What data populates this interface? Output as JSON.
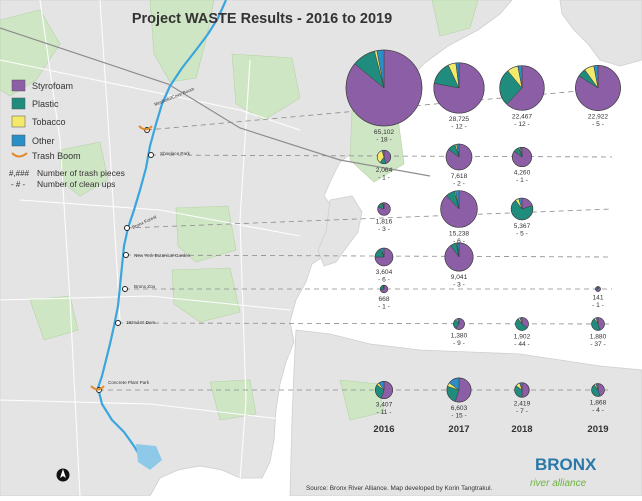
{
  "title": "Project WASTE Results - 2016 to 2019",
  "legend": [
    {
      "label": "Styrofoam",
      "color": "#8c5ea6"
    },
    {
      "label": "Plastic",
      "color": "#1f8c7d"
    },
    {
      "label": "Tobacco",
      "color": "#f3ea6c"
    },
    {
      "label": "Other",
      "color": "#2a8fc6"
    }
  ],
  "legend_extra": {
    "boom": "Trash Boom",
    "count_symbol": "#,###",
    "count_label": "Number of trash pieces",
    "cleanup_symbol": "- # -",
    "cleanup_label": "Number of clean ups"
  },
  "places": [
    "Mosholu/Cove Boom",
    "Shoelace Park",
    "Bronx Forest",
    "New York Botanical Garden",
    "Bronx Zoo",
    "182nd St Dam",
    "Concrete Plant Park"
  ],
  "years": [
    "2016",
    "2017",
    "2018",
    "2019"
  ],
  "sites": [
    {
      "cells": [
        {
          "count": "65,102",
          "cleanups": "- 18 -",
          "shares": [
            0.86,
            0.1,
            0.01,
            0.03
          ]
        },
        {
          "count": "28,725",
          "cleanups": "- 12 -",
          "shares": [
            0.78,
            0.15,
            0.05,
            0.02
          ]
        },
        {
          "count": "22,467",
          "cleanups": "- 12 -",
          "shares": [
            0.62,
            0.27,
            0.08,
            0.03
          ]
        },
        {
          "count": "22,922",
          "cleanups": "- 5 -",
          "shares": [
            0.84,
            0.06,
            0.07,
            0.03
          ]
        }
      ]
    },
    {
      "cells": [
        {
          "count": "2,064",
          "cleanups": "- 1 -",
          "shares": [
            0.45,
            0.15,
            0.35,
            0.05
          ]
        },
        {
          "count": "7,618",
          "cleanups": "- 2 -",
          "shares": [
            0.85,
            0.1,
            0.02,
            0.03
          ]
        },
        {
          "count": "4,260",
          "cleanups": "- 1 -",
          "shares": [
            0.85,
            0.1,
            0.02,
            0.03
          ]
        },
        null
      ]
    },
    {
      "cells": [
        {
          "count": "1,816",
          "cleanups": "- 3 -",
          "shares": [
            0.8,
            0.15,
            0.02,
            0.03
          ]
        },
        {
          "count": "15,238",
          "cleanups": "- 6 -",
          "shares": [
            0.88,
            0.08,
            0.01,
            0.03
          ]
        },
        {
          "count": "5,367",
          "cleanups": "- 5 -",
          "shares": [
            0.2,
            0.7,
            0.05,
            0.05
          ]
        },
        null
      ]
    },
    {
      "cells": [
        {
          "count": "3,604",
          "cleanups": "- 6 -",
          "shares": [
            0.75,
            0.18,
            0.02,
            0.05
          ]
        },
        {
          "count": "9,041",
          "cleanups": "- 3 -",
          "shares": [
            0.9,
            0.07,
            0.01,
            0.02
          ]
        },
        null,
        null
      ]
    },
    {
      "cells": [
        {
          "count": "668",
          "cleanups": "- 1 -",
          "shares": [
            0.7,
            0.25,
            0.02,
            0.03
          ]
        },
        null,
        null,
        {
          "count": "141",
          "cleanups": "- 1 -",
          "shares": [
            0.7,
            0.25,
            0.02,
            0.03
          ]
        }
      ]
    },
    {
      "cells": [
        null,
        {
          "count": "1,380",
          "cleanups": "- 9 -",
          "shares": [
            0.6,
            0.3,
            0.05,
            0.05
          ]
        },
        {
          "count": "1,902",
          "cleanups": "- 44 -",
          "shares": [
            0.35,
            0.55,
            0.05,
            0.05
          ]
        },
        {
          "count": "1,880",
          "cleanups": "- 37 -",
          "shares": [
            0.45,
            0.45,
            0.05,
            0.05
          ]
        }
      ]
    },
    {
      "cells": [
        {
          "count": "3,407",
          "cleanups": "- 11 -",
          "shares": [
            0.55,
            0.3,
            0.05,
            0.1
          ]
        },
        {
          "count": "6,603",
          "cleanups": "- 15 -",
          "shares": [
            0.55,
            0.25,
            0.05,
            0.15
          ]
        },
        {
          "count": "2,419",
          "cleanups": "- 7 -",
          "shares": [
            0.5,
            0.35,
            0.1,
            0.05
          ]
        },
        {
          "count": "1,868",
          "cleanups": "- 4 -",
          "shares": [
            0.45,
            0.45,
            0.05,
            0.05
          ]
        }
      ]
    }
  ],
  "source": "Source: Bronx River Alliance.  Map developed by Korin Tangtrakul.",
  "logo": {
    "line1": "BRONX",
    "line2": "river alliance"
  }
}
